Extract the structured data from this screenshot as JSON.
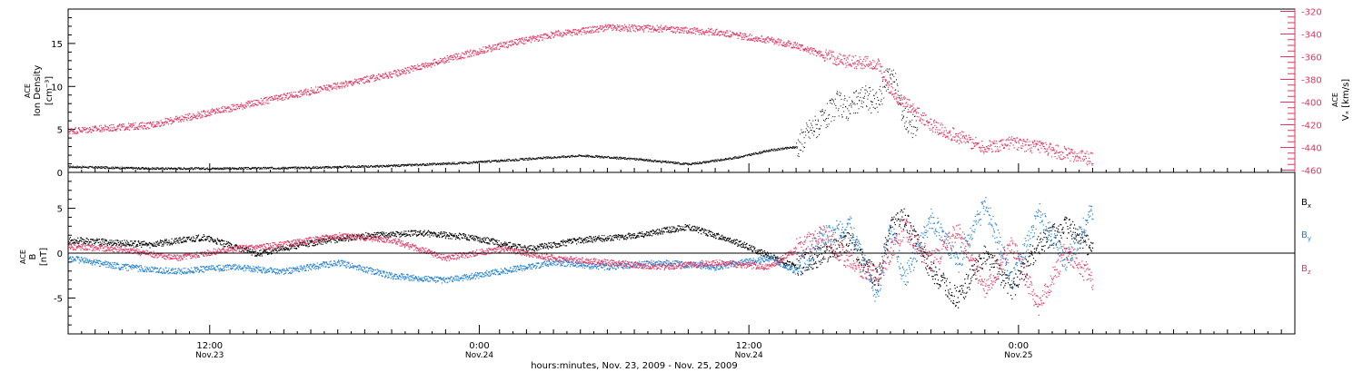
{
  "chart_data": [
    {
      "type": "scatter",
      "panel": "top",
      "ylabel_left": [
        "ACE",
        "Ion Density",
        "[cm⁻³]"
      ],
      "ylabel_right": [
        "ACE",
        "Vₓ [km/s]"
      ],
      "ylim_left": [
        0,
        19
      ],
      "ylim_right": [
        -462,
        -318
      ],
      "yticks_left": [
        "0",
        "5",
        "10",
        "15"
      ],
      "yticks_right": [
        "-320",
        "-340",
        "-360",
        "-380",
        "-400",
        "-420",
        "-440",
        "-460"
      ],
      "series": [
        {
          "axis": "left",
          "color": "#000000",
          "x": [
            0,
            6,
            12,
            18,
            24,
            30,
            34,
            38,
            42,
            46,
            48,
            50,
            52,
            54,
            55,
            56,
            57,
            58,
            59,
            60,
            61,
            62,
            63
          ],
          "y": [
            0.7,
            0.5,
            0.5,
            0.6,
            0.8,
            1.2,
            1.6,
            2.0,
            1.6,
            1.0,
            1.4,
            1.9,
            2.6,
            3.0,
            5.0,
            6.0,
            8.0,
            7.5,
            9.0,
            8.0,
            12.0,
            6.5,
            5.0
          ]
        },
        {
          "axis": "right",
          "color": "#e6335f",
          "x": [
            0,
            6,
            12,
            18,
            24,
            28,
            32,
            36,
            40,
            44,
            48,
            52,
            54,
            56,
            58,
            60,
            61,
            62,
            64,
            66,
            68,
            70,
            72,
            74,
            76
          ],
          "y": [
            -425,
            -420,
            -405,
            -390,
            -375,
            -362,
            -350,
            -340,
            -334,
            -335,
            -338,
            -345,
            -350,
            -358,
            -364,
            -366,
            -390,
            -400,
            -420,
            -430,
            -440,
            -435,
            -440,
            -445,
            -450
          ]
        }
      ]
    },
    {
      "type": "scatter",
      "panel": "bottom",
      "ylabel": [
        "ACE",
        "B",
        "[nT]"
      ],
      "ylim": [
        -9,
        9
      ],
      "yticks": [
        "-5",
        "0",
        "5"
      ],
      "legend_placement": "right",
      "series": [
        {
          "name": "Bx",
          "color": "#000000",
          "x": [
            0,
            6,
            10,
            14,
            18,
            22,
            26,
            30,
            34,
            38,
            42,
            46,
            50,
            54,
            56,
            58,
            60,
            61,
            62,
            64,
            66,
            68,
            70,
            72,
            74,
            76
          ],
          "y": [
            1.5,
            1.0,
            1.8,
            0.0,
            1.2,
            2.0,
            2.3,
            1.8,
            0.5,
            1.5,
            2.0,
            3.0,
            1.0,
            -1.5,
            0.0,
            1.5,
            -3.0,
            3.0,
            4.0,
            -2.0,
            -5.0,
            0.0,
            -4.0,
            1.0,
            3.0,
            0.5
          ]
        },
        {
          "name": "By",
          "color": "#1f7fd6",
          "x": [
            0,
            4,
            8,
            12,
            16,
            20,
            24,
            28,
            32,
            36,
            40,
            44,
            48,
            52,
            54,
            56,
            58,
            60,
            61,
            62,
            64,
            66,
            68,
            70,
            72,
            74,
            76
          ],
          "y": [
            -0.5,
            -1.5,
            -2.0,
            -1.5,
            -2.0,
            -1.0,
            -2.5,
            -3.0,
            -2.0,
            -1.0,
            -1.5,
            -1.0,
            -1.5,
            -0.5,
            -2.0,
            2.0,
            3.0,
            -5.0,
            3.0,
            -3.0,
            4.0,
            -1.0,
            5.5,
            -3.0,
            4.5,
            -1.0,
            5.0
          ]
        },
        {
          "name": "Bz",
          "color": "#e6335f",
          "x": [
            0,
            4,
            8,
            12,
            16,
            20,
            24,
            28,
            32,
            36,
            40,
            44,
            48,
            52,
            54,
            56,
            58,
            60,
            62,
            64,
            66,
            68,
            70,
            72,
            74,
            76
          ],
          "y": [
            0.8,
            0.5,
            -0.5,
            0.5,
            1.0,
            2.0,
            1.5,
            -0.5,
            0.5,
            -0.5,
            -1.0,
            -1.5,
            -1.0,
            -1.5,
            0.5,
            2.0,
            -1.0,
            -2.5,
            3.0,
            -1.0,
            2.5,
            -4.0,
            1.0,
            -6.0,
            0.5,
            -3.0
          ]
        }
      ]
    }
  ],
  "x_axis": {
    "range_hours": [
      0,
      91
    ],
    "major_ticks": [
      {
        "hour": 10.5,
        "time": "12:00",
        "date": "Nov.23"
      },
      {
        "hour": 30.5,
        "time": "0:00",
        "date": "Nov.24"
      },
      {
        "hour": 50.5,
        "time": "12:00",
        "date": "Nov.24"
      },
      {
        "hour": 70.5,
        "time": "0:00",
        "date": "Nov.25"
      }
    ],
    "xlabel": "hours:minutes, Nov. 23, 2009 - Nov. 25, 2009"
  },
  "legend": [
    {
      "label": "B",
      "sub": "x",
      "color": "#000000"
    },
    {
      "label": "B",
      "sub": "y",
      "color": "#1f7fd6"
    },
    {
      "label": "B",
      "sub": "z",
      "color": "#e6335f"
    }
  ]
}
